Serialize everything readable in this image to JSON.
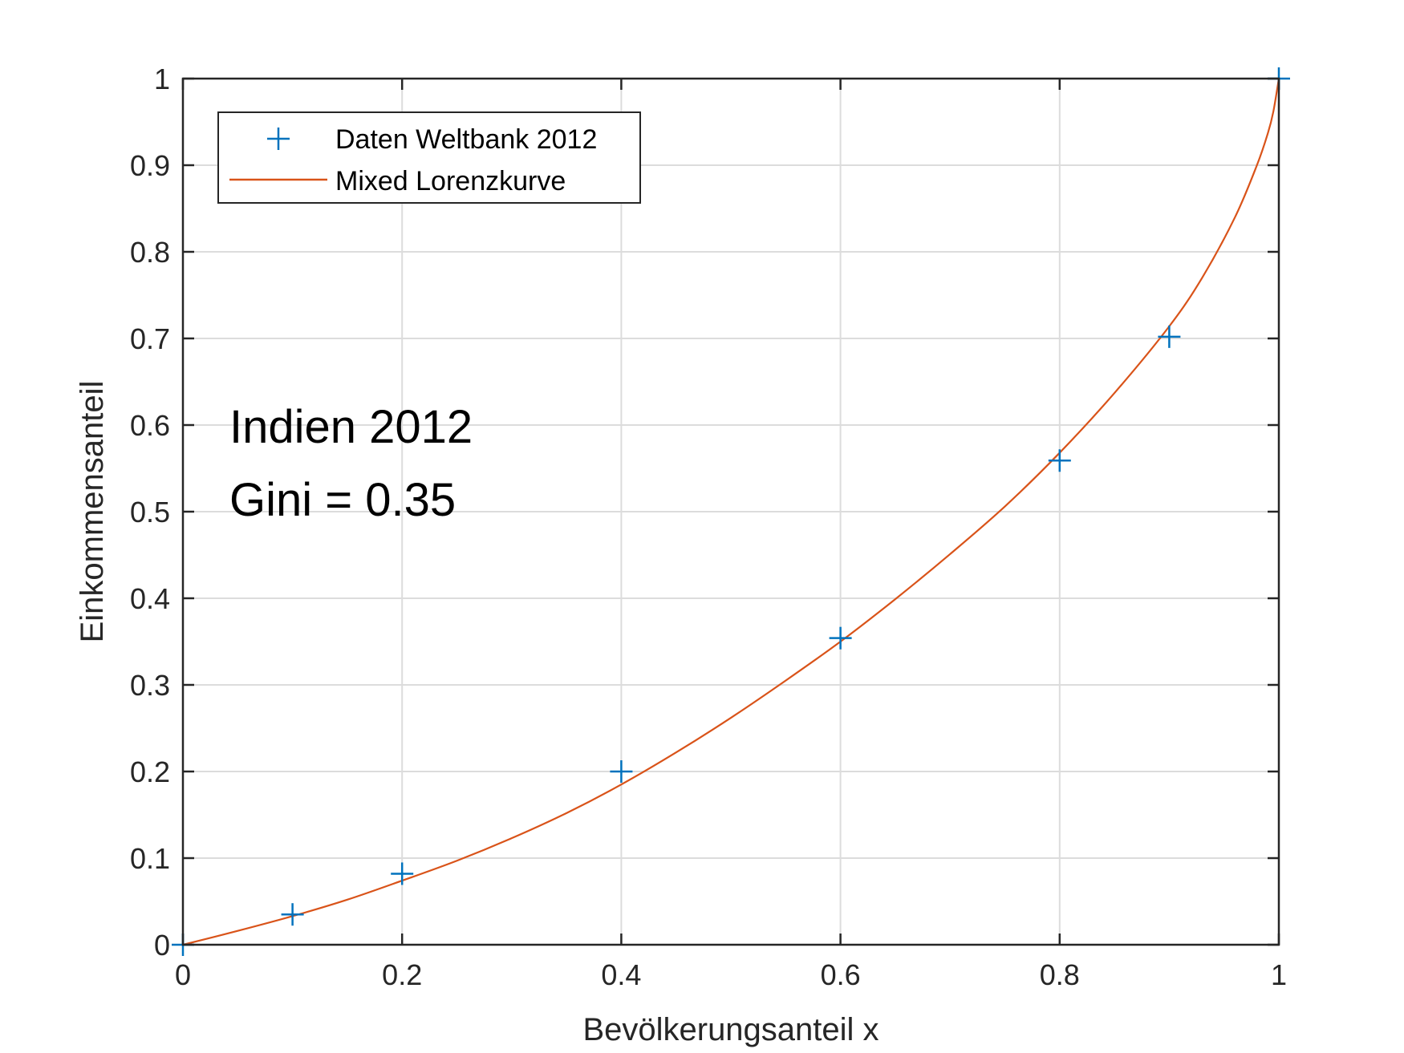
{
  "chart_data": {
    "type": "line",
    "xlabel": "Bevölkerungsanteil x",
    "ylabel": "Einkommensanteil",
    "xlim": [
      0,
      1
    ],
    "ylim": [
      0,
      1
    ],
    "grid": true,
    "legend_position": "top-left",
    "xticks": [
      {
        "value": 0,
        "label": "0"
      },
      {
        "value": 0.2,
        "label": "0.2"
      },
      {
        "value": 0.4,
        "label": "0.4"
      },
      {
        "value": 0.6,
        "label": "0.6"
      },
      {
        "value": 0.8,
        "label": "0.8"
      },
      {
        "value": 1,
        "label": "1"
      }
    ],
    "yticks": [
      {
        "value": 0,
        "label": "0"
      },
      {
        "value": 0.1,
        "label": "0.1"
      },
      {
        "value": 0.2,
        "label": "0.2"
      },
      {
        "value": 0.3,
        "label": "0.3"
      },
      {
        "value": 0.4,
        "label": "0.4"
      },
      {
        "value": 0.5,
        "label": "0.5"
      },
      {
        "value": 0.6,
        "label": "0.6"
      },
      {
        "value": 0.7,
        "label": "0.7"
      },
      {
        "value": 0.8,
        "label": "0.8"
      },
      {
        "value": 0.9,
        "label": "0.9"
      },
      {
        "value": 1,
        "label": "1"
      }
    ],
    "series": [
      {
        "name": "Daten Weltbank 2012",
        "type": "scatter",
        "marker": "plus",
        "color": "#0072BD",
        "x": [
          0,
          0.1,
          0.2,
          0.4,
          0.6,
          0.8,
          0.9,
          1
        ],
        "y": [
          0,
          0.035,
          0.082,
          0.2,
          0.354,
          0.559,
          0.702,
          1
        ]
      },
      {
        "name": "Mixed Lorenzkurve",
        "type": "line",
        "color": "#D95319",
        "x": [
          0,
          0.05,
          0.1,
          0.15,
          0.2,
          0.25,
          0.3,
          0.35,
          0.4,
          0.45,
          0.5,
          0.55,
          0.6,
          0.65,
          0.7,
          0.75,
          0.8,
          0.85,
          0.9,
          0.93,
          0.96,
          0.98,
          0.99,
          0.995,
          1
        ],
        "y": [
          0,
          0.016,
          0.033,
          0.052,
          0.074,
          0.097,
          0.123,
          0.152,
          0.185,
          0.222,
          0.262,
          0.305,
          0.35,
          0.399,
          0.451,
          0.506,
          0.568,
          0.637,
          0.714,
          0.77,
          0.84,
          0.9,
          0.937,
          0.962,
          1
        ]
      }
    ],
    "annotations": [
      "Indien 2012",
      "Gini = 0.35"
    ]
  }
}
